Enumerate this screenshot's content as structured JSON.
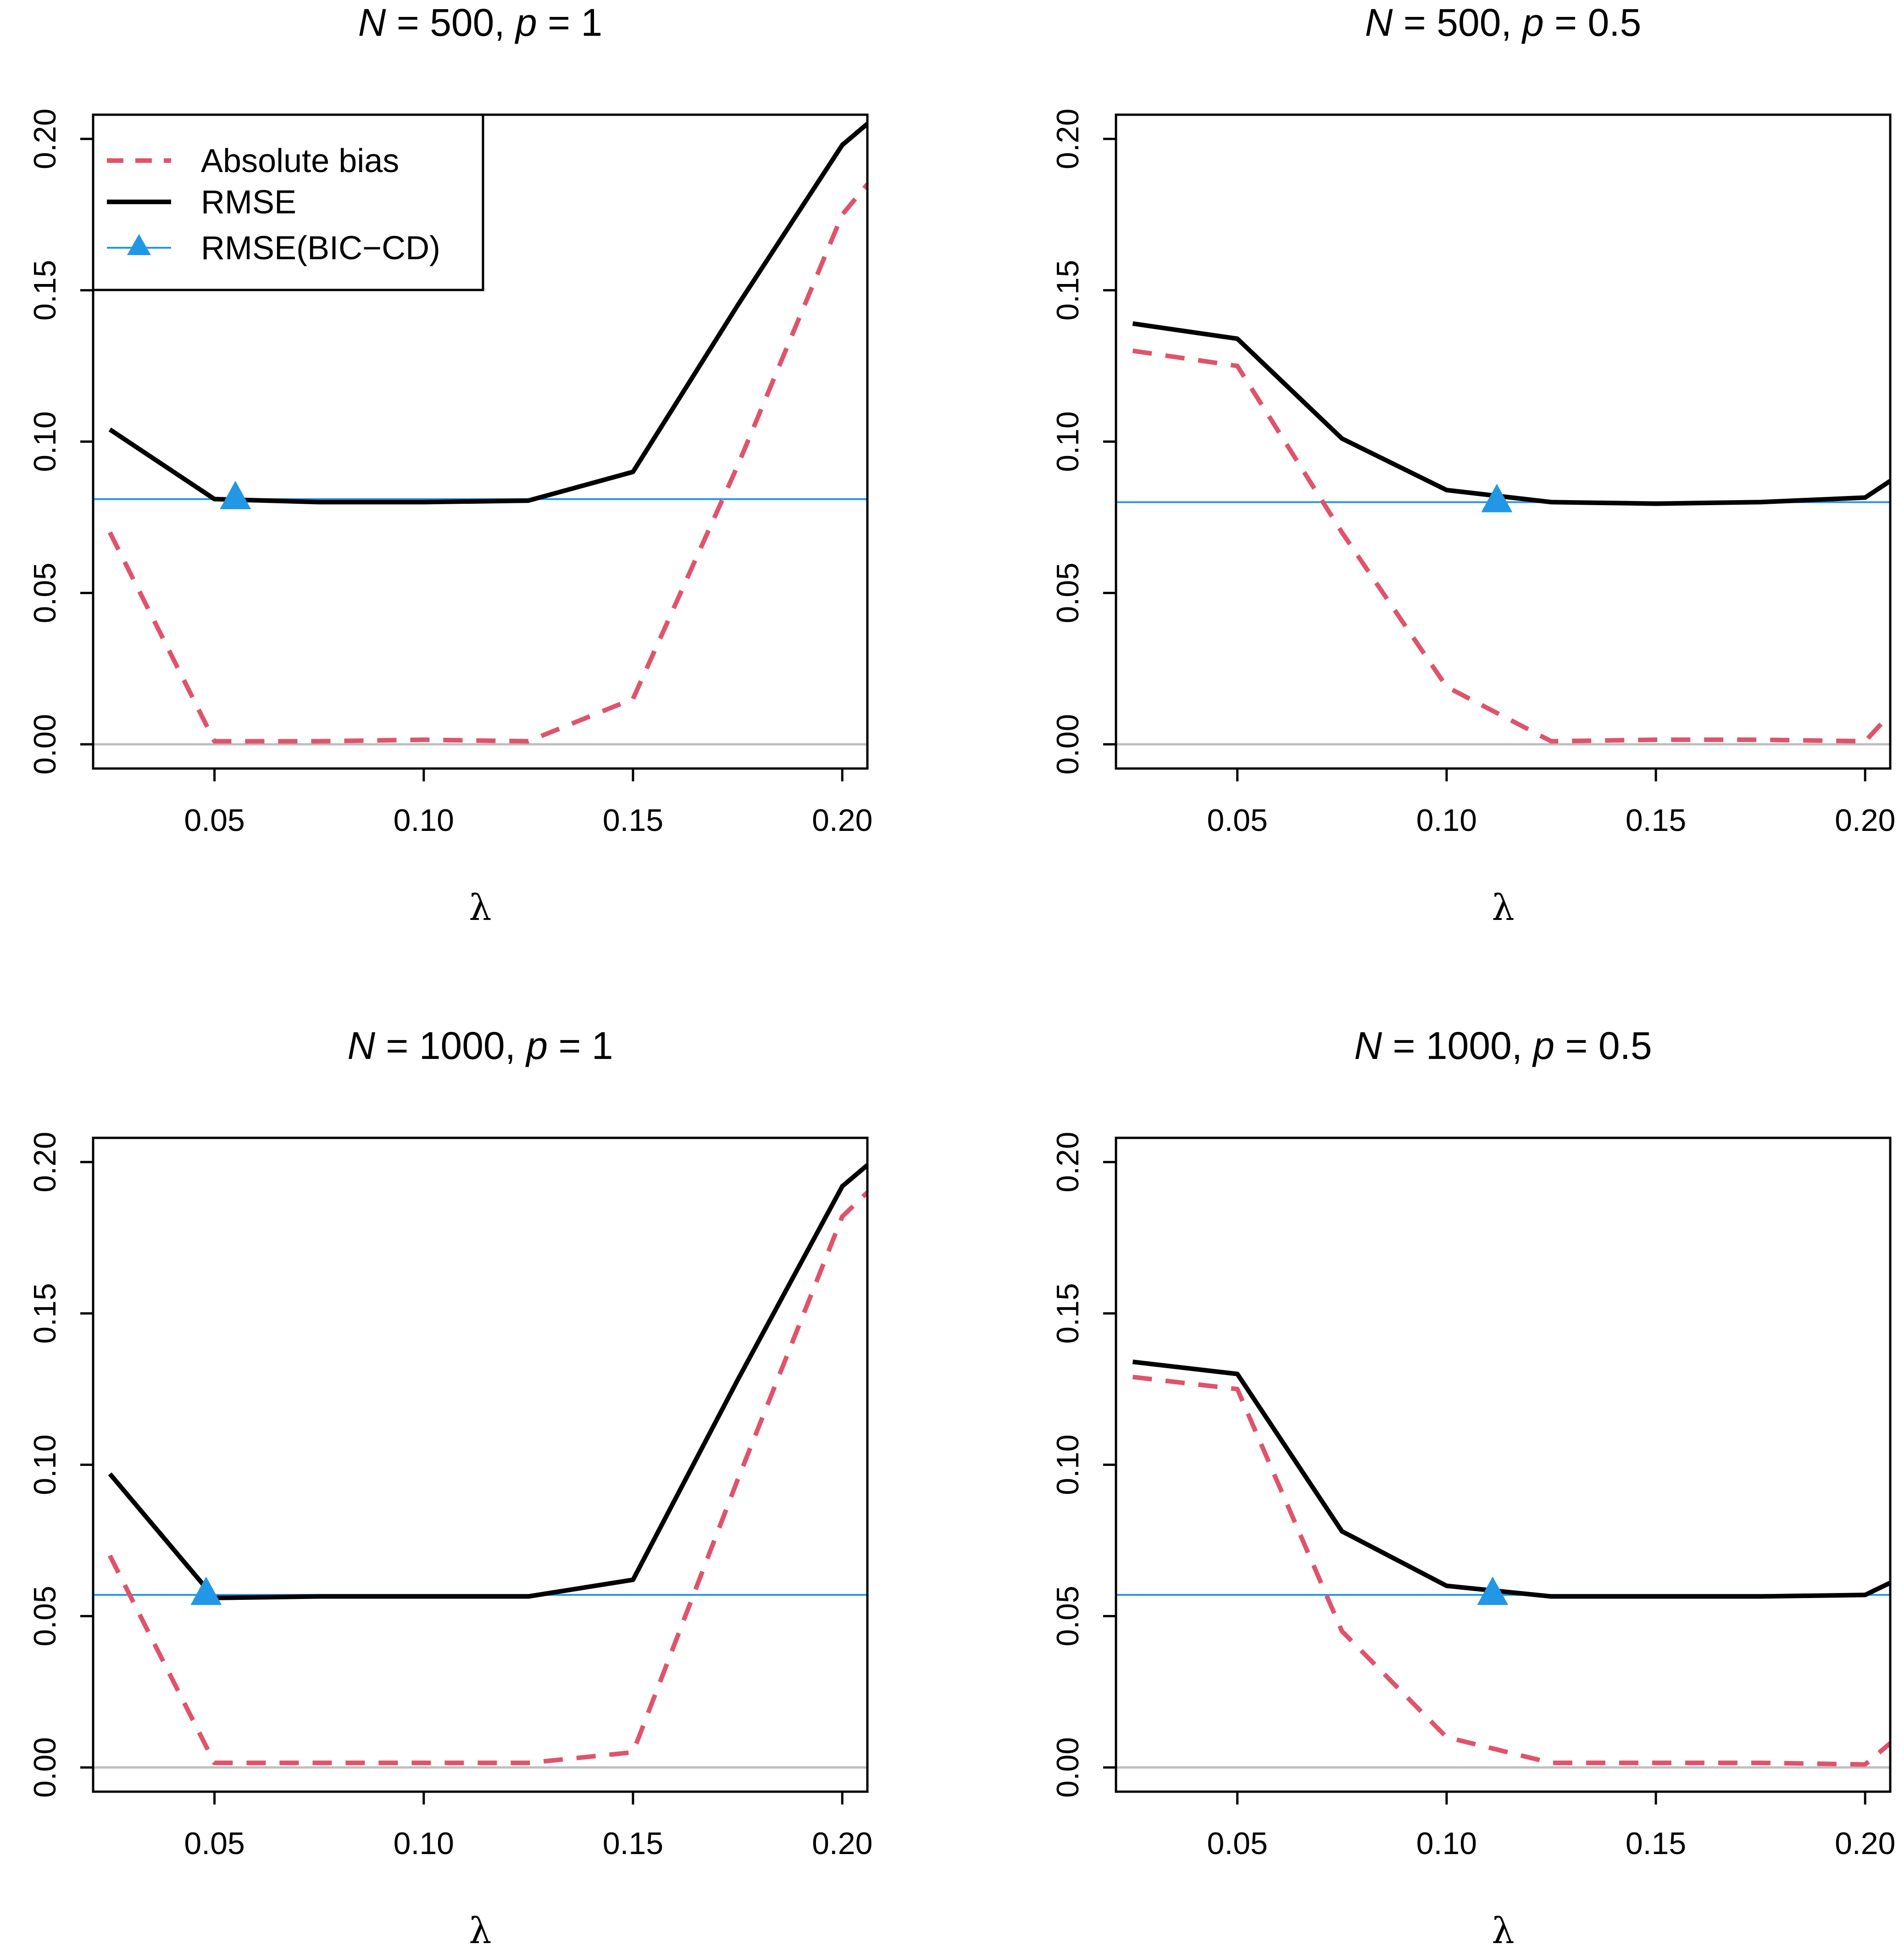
{
  "chart_data": [
    {
      "type": "line",
      "title": {
        "n_label": "N",
        "n_value": "500",
        "p_label": "p",
        "p_value": "1"
      },
      "xlabel": "λ",
      "xlim": [
        0.021,
        0.206
      ],
      "ylim": [
        -0.008,
        0.208
      ],
      "xticks": [
        "0.05",
        "0.10",
        "0.15",
        "0.20"
      ],
      "yticks": [
        "0.00",
        "0.05",
        "0.10",
        "0.15",
        "0.20"
      ],
      "x": [
        0.025,
        0.05,
        0.075,
        0.1,
        0.125,
        0.15,
        0.175,
        0.2,
        0.206
      ],
      "series": [
        {
          "name": "Absolute bias",
          "color": "#DF536B",
          "values": [
            0.07,
            0.001,
            0.001,
            0.0015,
            0.001,
            0.015,
            0.092,
            0.175,
            0.185
          ]
        },
        {
          "name": "RMSE",
          "color": "#000000",
          "values": [
            0.104,
            0.081,
            0.08,
            0.08,
            0.0805,
            0.09,
            0.145,
            0.198,
            0.205
          ]
        }
      ],
      "reference": {
        "name": "RMSE(BIC−CD)",
        "color": "#2297E6",
        "value": 0.081,
        "marker_x": 0.055
      },
      "zero_line_color": "#BEBEBE",
      "legend": {
        "position": "top-left",
        "entries": [
          "Absolute bias",
          "RMSE",
          "RMSE(BIC−CD)"
        ]
      }
    },
    {
      "type": "line",
      "title": {
        "n_label": "N",
        "n_value": "500",
        "p_label": "p",
        "p_value": "0.5"
      },
      "xlabel": "λ",
      "xlim": [
        0.021,
        0.206
      ],
      "ylim": [
        -0.008,
        0.208
      ],
      "xticks": [
        "0.05",
        "0.10",
        "0.15",
        "0.20"
      ],
      "yticks": [
        "0.00",
        "0.05",
        "0.10",
        "0.15",
        "0.20"
      ],
      "x": [
        0.025,
        0.05,
        0.075,
        0.1,
        0.125,
        0.15,
        0.175,
        0.2,
        0.206
      ],
      "series": [
        {
          "name": "Absolute bias",
          "color": "#DF536B",
          "values": [
            0.13,
            0.125,
            0.07,
            0.019,
            0.001,
            0.0015,
            0.0015,
            0.001,
            0.01
          ]
        },
        {
          "name": "RMSE",
          "color": "#000000",
          "values": [
            0.139,
            0.134,
            0.101,
            0.084,
            0.08,
            0.0795,
            0.08,
            0.0815,
            0.087
          ]
        }
      ],
      "reference": {
        "name": "RMSE(BIC−CD)",
        "color": "#2297E6",
        "value": 0.08,
        "marker_x": 0.112
      },
      "zero_line_color": "#BEBEBE"
    },
    {
      "type": "line",
      "title": {
        "n_label": "N",
        "n_value": "1000",
        "p_label": "p",
        "p_value": "1"
      },
      "xlabel": "λ",
      "xlim": [
        0.021,
        0.206
      ],
      "ylim": [
        -0.008,
        0.208
      ],
      "xticks": [
        "0.05",
        "0.10",
        "0.15",
        "0.20"
      ],
      "yticks": [
        "0.00",
        "0.05",
        "0.10",
        "0.15",
        "0.20"
      ],
      "x": [
        0.025,
        0.05,
        0.075,
        0.1,
        0.125,
        0.15,
        0.175,
        0.2,
        0.206
      ],
      "series": [
        {
          "name": "Absolute bias",
          "color": "#DF536B",
          "values": [
            0.07,
            0.0015,
            0.0015,
            0.0015,
            0.0015,
            0.005,
            0.095,
            0.182,
            0.19
          ]
        },
        {
          "name": "RMSE",
          "color": "#000000",
          "values": [
            0.097,
            0.056,
            0.0565,
            0.0565,
            0.0565,
            0.062,
            0.128,
            0.192,
            0.199
          ]
        }
      ],
      "reference": {
        "name": "RMSE(BIC−CD)",
        "color": "#2297E6",
        "value": 0.057,
        "marker_x": 0.048
      },
      "zero_line_color": "#BEBEBE"
    },
    {
      "type": "line",
      "title": {
        "n_label": "N",
        "n_value": "1000",
        "p_label": "p",
        "p_value": "0.5"
      },
      "xlabel": "λ",
      "xlim": [
        0.021,
        0.206
      ],
      "ylim": [
        -0.008,
        0.208
      ],
      "xticks": [
        "0.05",
        "0.10",
        "0.15",
        "0.20"
      ],
      "yticks": [
        "0.00",
        "0.05",
        "0.10",
        "0.15",
        "0.20"
      ],
      "x": [
        0.025,
        0.05,
        0.075,
        0.1,
        0.125,
        0.15,
        0.175,
        0.2,
        0.206
      ],
      "series": [
        {
          "name": "Absolute bias",
          "color": "#DF536B",
          "values": [
            0.129,
            0.125,
            0.045,
            0.01,
            0.0015,
            0.0015,
            0.0015,
            0.001,
            0.008
          ]
        },
        {
          "name": "RMSE",
          "color": "#000000",
          "values": [
            0.134,
            0.13,
            0.078,
            0.06,
            0.0565,
            0.0565,
            0.0565,
            0.057,
            0.061
          ]
        }
      ],
      "reference": {
        "name": "RMSE(BIC−CD)",
        "color": "#2297E6",
        "value": 0.057,
        "marker_x": 0.111
      },
      "zero_line_color": "#BEBEBE"
    }
  ]
}
